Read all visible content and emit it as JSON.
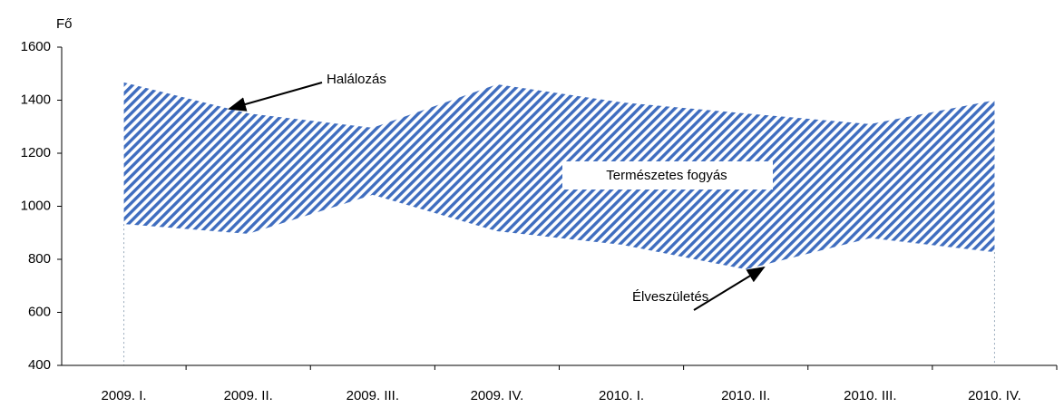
{
  "chart_data": {
    "type": "band",
    "y_label": "Fő",
    "band_label": "Természetes fogyás",
    "categories": [
      "2009. I.",
      "2009. II.",
      "2009. III.",
      "2009. IV.",
      "2010. I.",
      "2010. II.",
      "2010. III.",
      "2010. IV."
    ],
    "series": [
      {
        "name": "Halálozás",
        "color": "#3f6dbf",
        "values": [
          1467,
          1350,
          1296,
          1460,
          1392,
          1350,
          1310,
          1400
        ]
      },
      {
        "name": "Élveszületés",
        "color": "#3f6dbf",
        "values": [
          933,
          896,
          1043,
          906,
          855,
          762,
          880,
          827
        ]
      }
    ],
    "ylim": [
      400,
      1600
    ],
    "yticks": [
      400,
      600,
      800,
      1000,
      1200,
      1400,
      1600
    ],
    "grid": false
  }
}
